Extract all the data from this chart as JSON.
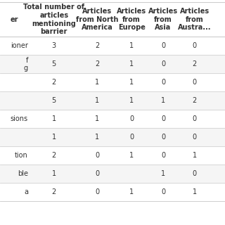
{
  "col_headers": [
    "er",
    "Total number of\narticles\nmentioning\nbarrier",
    "Articles\nfrom North\nAmerica",
    "Articles\nfrom\nEurope",
    "Articles\nfrom\nAsia",
    "Articles\nfrom\nAustra..."
  ],
  "row_labels": [
    "ioner",
    "f\ng",
    "",
    "",
    "sions",
    "",
    "tion",
    "ble",
    "a"
  ],
  "table_data": [
    [
      "3",
      "2",
      "1",
      "0",
      "0"
    ],
    [
      "5",
      "2",
      "1",
      "0",
      "2"
    ],
    [
      "2",
      "1",
      "1",
      "0",
      "0"
    ],
    [
      "5",
      "1",
      "1",
      "1",
      "2"
    ],
    [
      "1",
      "1",
      "0",
      "0",
      "0"
    ],
    [
      "1",
      "1",
      "0",
      "0",
      "0"
    ],
    [
      "2",
      "0",
      "1",
      "0",
      "1"
    ],
    [
      "1",
      "0",
      "",
      "1",
      "0"
    ],
    [
      "2",
      "0",
      "1",
      "0",
      "1"
    ]
  ],
  "background_color": "#ffffff",
  "header_color": "#ffffff",
  "text_color": "#333333",
  "line_color": "#cccccc",
  "alt_row_color": "#f5f5f5",
  "font_size": 7.5
}
